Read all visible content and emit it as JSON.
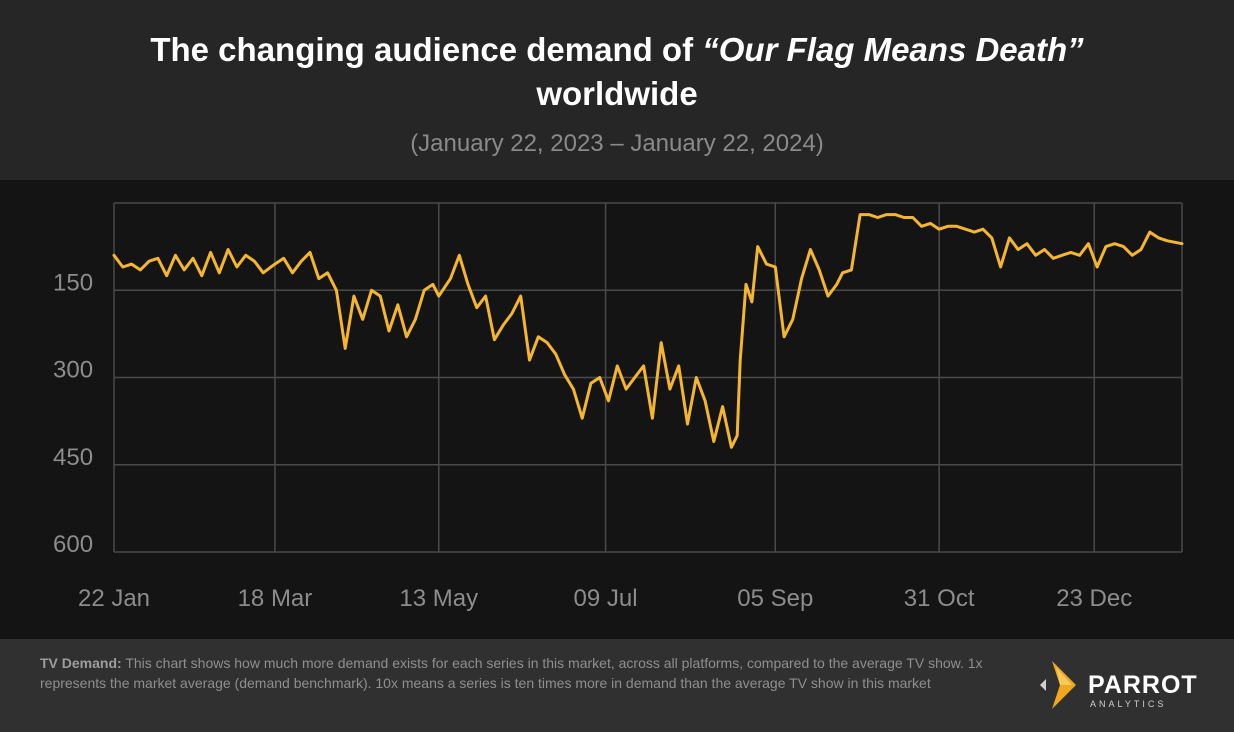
{
  "header": {
    "title_prefix": "The changing audience demand of ",
    "title_show": "“Our Flag Means Death”",
    "title_suffix": "worldwide",
    "subtitle": "(January 22, 2023 – January 22, 2024)"
  },
  "footer": {
    "note_label": "TV Demand:",
    "note_text": " This chart shows how much more demand exists for each series in this market, across all platforms, compared to the average TV show. 1x represents the market average (demand benchmark). 10x means a series is ten times more in demand than the average TV show in this market",
    "logo_name": "PARROT",
    "logo_sub": "ANALYTICS"
  },
  "colors": {
    "line": "#f5b62e",
    "grid": "#4a4a4a",
    "tick_text": "#8c8c8c",
    "logo_accent": "#f0a81e"
  },
  "chart_data": {
    "type": "line",
    "title": "",
    "xlabel": "",
    "ylabel": "",
    "y_reversed": true,
    "ylim": [
      0,
      600
    ],
    "y_ticks": [
      150,
      300,
      450,
      600
    ],
    "y_tick_labels": [
      "150",
      "300",
      "450",
      "600"
    ],
    "x_ticks": [
      "2023-01-22",
      "2023-03-18",
      "2023-05-13",
      "2023-07-09",
      "2023-09-05",
      "2023-10-31",
      "2023-12-23"
    ],
    "x_tick_labels": [
      "22 Jan",
      "18 Mar",
      "13 May",
      "09 Jul",
      "05 Sep",
      "31 Oct",
      "23 Dec"
    ],
    "xlim": [
      "2023-01-22",
      "2024-01-22"
    ],
    "grid": true,
    "series": [
      {
        "name": "",
        "color": "#f5b62e",
        "x": [
          "2023-01-22",
          "2023-01-25",
          "2023-01-28",
          "2023-01-31",
          "2023-02-03",
          "2023-02-06",
          "2023-02-09",
          "2023-02-12",
          "2023-02-15",
          "2023-02-18",
          "2023-02-21",
          "2023-02-24",
          "2023-02-27",
          "2023-03-02",
          "2023-03-05",
          "2023-03-08",
          "2023-03-11",
          "2023-03-14",
          "2023-03-18",
          "2023-03-21",
          "2023-03-24",
          "2023-03-27",
          "2023-03-30",
          "2023-04-02",
          "2023-04-05",
          "2023-04-08",
          "2023-04-11",
          "2023-04-14",
          "2023-04-17",
          "2023-04-20",
          "2023-04-23",
          "2023-04-26",
          "2023-04-29",
          "2023-05-02",
          "2023-05-05",
          "2023-05-08",
          "2023-05-11",
          "2023-05-13",
          "2023-05-17",
          "2023-05-20",
          "2023-05-23",
          "2023-05-26",
          "2023-05-29",
          "2023-06-01",
          "2023-06-04",
          "2023-06-07",
          "2023-06-10",
          "2023-06-13",
          "2023-06-16",
          "2023-06-19",
          "2023-06-22",
          "2023-06-25",
          "2023-06-28",
          "2023-07-01",
          "2023-07-04",
          "2023-07-07",
          "2023-07-10",
          "2023-07-13",
          "2023-07-16",
          "2023-07-19",
          "2023-07-22",
          "2023-07-25",
          "2023-07-28",
          "2023-07-31",
          "2023-08-03",
          "2023-08-06",
          "2023-08-09",
          "2023-08-12",
          "2023-08-15",
          "2023-08-18",
          "2023-08-21",
          "2023-08-23",
          "2023-08-24",
          "2023-08-26",
          "2023-08-28",
          "2023-08-30",
          "2023-09-02",
          "2023-09-05",
          "2023-09-08",
          "2023-09-11",
          "2023-09-14",
          "2023-09-17",
          "2023-09-20",
          "2023-09-23",
          "2023-09-26",
          "2023-09-28",
          "2023-10-01",
          "2023-10-04",
          "2023-10-07",
          "2023-10-10",
          "2023-10-13",
          "2023-10-16",
          "2023-10-19",
          "2023-10-22",
          "2023-10-25",
          "2023-10-28",
          "2023-10-31",
          "2023-11-03",
          "2023-11-06",
          "2023-11-09",
          "2023-11-12",
          "2023-11-15",
          "2023-11-18",
          "2023-11-21",
          "2023-11-24",
          "2023-11-27",
          "2023-11-30",
          "2023-12-03",
          "2023-12-06",
          "2023-12-09",
          "2023-12-12",
          "2023-12-15",
          "2023-12-18",
          "2023-12-21",
          "2023-12-24",
          "2023-12-27",
          "2023-12-30",
          "2024-01-02",
          "2024-01-05",
          "2024-01-08",
          "2024-01-11",
          "2024-01-14",
          "2024-01-17",
          "2024-01-22"
        ],
        "y": [
          90,
          110,
          105,
          115,
          100,
          95,
          125,
          90,
          115,
          95,
          125,
          85,
          120,
          80,
          110,
          90,
          100,
          120,
          105,
          95,
          120,
          100,
          85,
          130,
          120,
          150,
          250,
          160,
          200,
          150,
          160,
          220,
          175,
          230,
          200,
          150,
          140,
          160,
          130,
          90,
          140,
          180,
          160,
          235,
          210,
          190,
          160,
          270,
          230,
          240,
          260,
          295,
          320,
          370,
          310,
          300,
          340,
          280,
          320,
          300,
          280,
          370,
          240,
          320,
          280,
          380,
          300,
          340,
          410,
          350,
          420,
          400,
          270,
          140,
          170,
          75,
          105,
          110,
          230,
          200,
          130,
          80,
          115,
          160,
          140,
          120,
          115,
          20,
          20,
          25,
          20,
          20,
          25,
          25,
          40,
          35,
          45,
          40,
          40,
          45,
          50,
          45,
          60,
          110,
          60,
          80,
          70,
          90,
          80,
          95,
          90,
          85,
          90,
          70,
          110,
          75,
          70,
          75,
          90,
          80,
          50,
          60,
          65,
          70
        ]
      }
    ]
  }
}
